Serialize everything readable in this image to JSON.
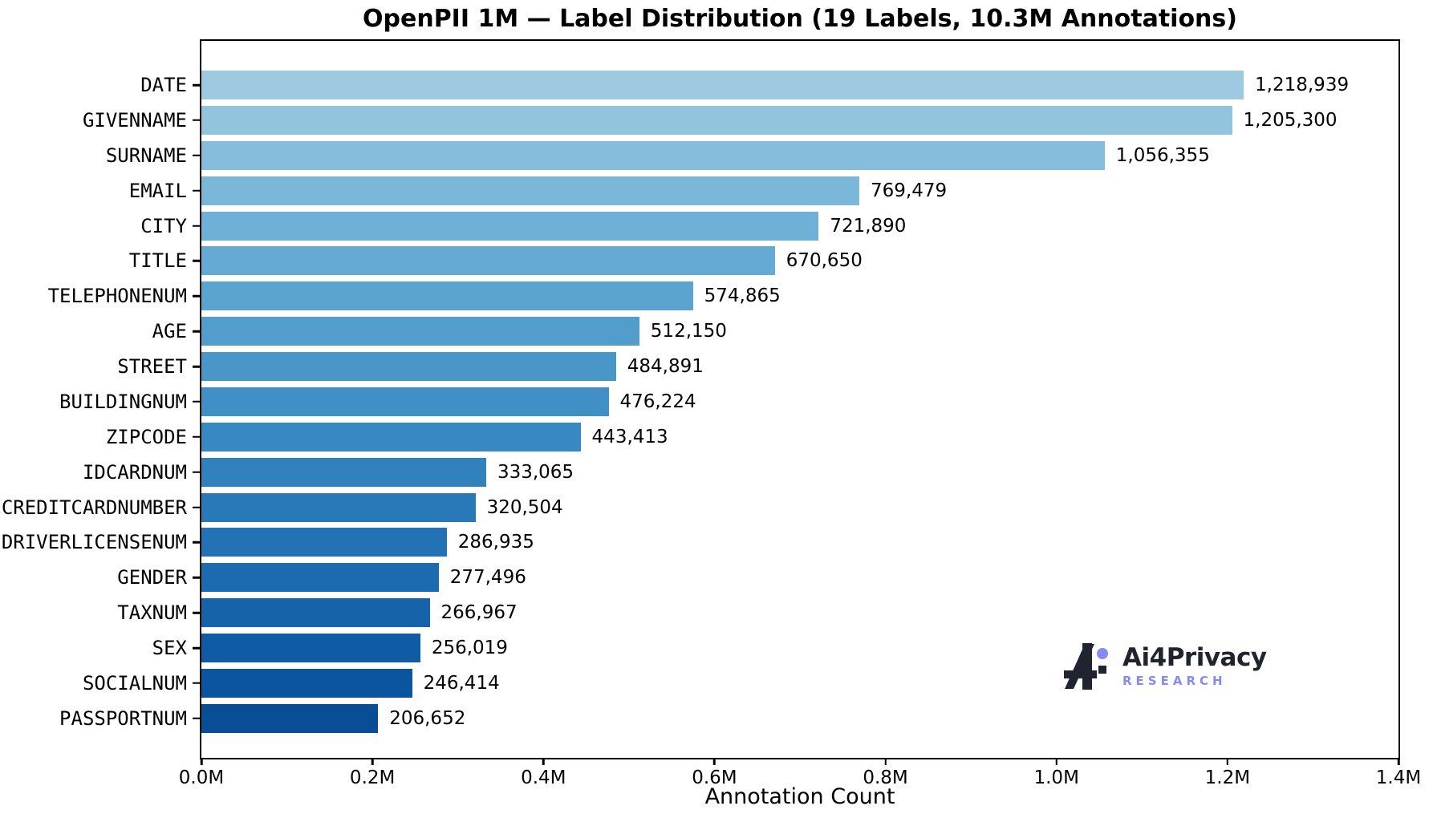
{
  "figure": {
    "background": "#ffffff"
  },
  "chart_data": {
    "type": "bar",
    "orientation": "horizontal",
    "title": "OpenPII 1M — Label Distribution (19 Labels, 10.3M Annotations)",
    "xlabel": "Annotation Count",
    "categories": [
      "DATE",
      "GIVENNAME",
      "SURNAME",
      "EMAIL",
      "CITY",
      "TITLE",
      "TELEPHONENUM",
      "AGE",
      "STREET",
      "BUILDINGNUM",
      "ZIPCODE",
      "IDCARDNUM",
      "CREDITCARDNUMBER",
      "DRIVERLICENSENUM",
      "GENDER",
      "TAXNUM",
      "SEX",
      "SOCIALNUM",
      "PASSPORTNUM"
    ],
    "values": [
      1218939,
      1205300,
      1056355,
      769479,
      721890,
      670650,
      574865,
      512150,
      484891,
      476224,
      443413,
      333065,
      320504,
      286935,
      277496,
      266967,
      256019,
      246414,
      206652
    ],
    "value_labels": [
      "1,218,939",
      "1,205,300",
      "1,056,355",
      "769,479",
      "721,890",
      "670,650",
      "574,865",
      "512,150",
      "484,891",
      "476,224",
      "443,413",
      "333,065",
      "320,504",
      "286,935",
      "277,496",
      "266,967",
      "256,019",
      "246,414",
      "206,652"
    ],
    "xlim": [
      0,
      1400000
    ],
    "x_tick_labels": [
      "0.0M",
      "0.2M",
      "0.4M",
      "0.6M",
      "0.8M",
      "1.0M",
      "1.2M",
      "1.4M"
    ],
    "grid": false,
    "legend": false,
    "bar_colors": [
      "#9ecae1",
      "#92c4de",
      "#87bddc",
      "#7bb7d9",
      "#6fb0d7",
      "#65aad4",
      "#5ca4d0",
      "#529dcc",
      "#4997c9",
      "#4090c5",
      "#3888c1",
      "#3181bd",
      "#2979b9",
      "#2272b5",
      "#1c6ab0",
      "#1663aa",
      "#105ca4",
      "#0b549f",
      "#084d96"
    ]
  },
  "logo": {
    "brand": "Ai4Privacy",
    "subtitle": "RESEARCH",
    "accent_color": "#868bf3",
    "mark_color": "#20242e",
    "text_color": "#20242e"
  }
}
